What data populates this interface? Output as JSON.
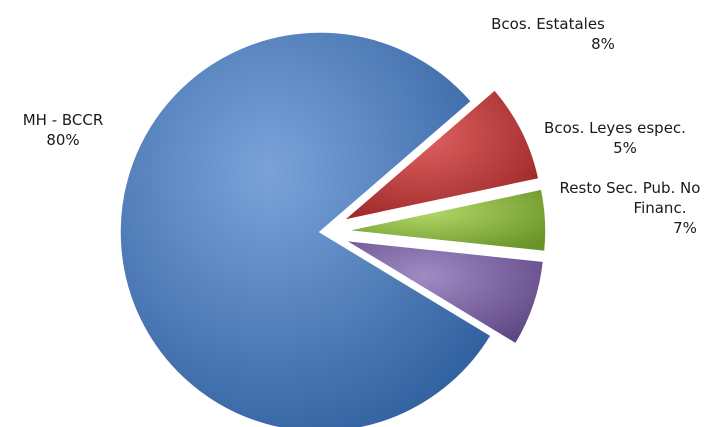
{
  "chart_data": {
    "type": "pie",
    "title": "",
    "slices": [
      {
        "label": "Resto Sec. Pub. No Financ.",
        "value": 7,
        "value_label": "7%",
        "color": "#8064a2"
      },
      {
        "label": "MH - BCCR",
        "value": 80,
        "value_label": "80%",
        "color": "#4a7ebb"
      },
      {
        "label": "Bcos. Estatales",
        "value": 8,
        "value_label": "8%",
        "color": "#c0393a"
      },
      {
        "label": "Bcos. Leyes espec.",
        "value": 5,
        "value_label": "5%",
        "color": "#8cb83f"
      }
    ],
    "exploded": true,
    "legend": "none"
  },
  "labels": {
    "mh": {
      "name": "MH - BCCR",
      "pct": "80%"
    },
    "estatales": {
      "name": "Bcos. Estatales",
      "pct": "8%"
    },
    "leyes": {
      "name": "Bcos. Leyes espec.",
      "pct": "5%"
    },
    "resto": {
      "name_line1": "Resto Sec. Pub. No",
      "name_line2": "Financ.",
      "pct": "7%"
    }
  }
}
